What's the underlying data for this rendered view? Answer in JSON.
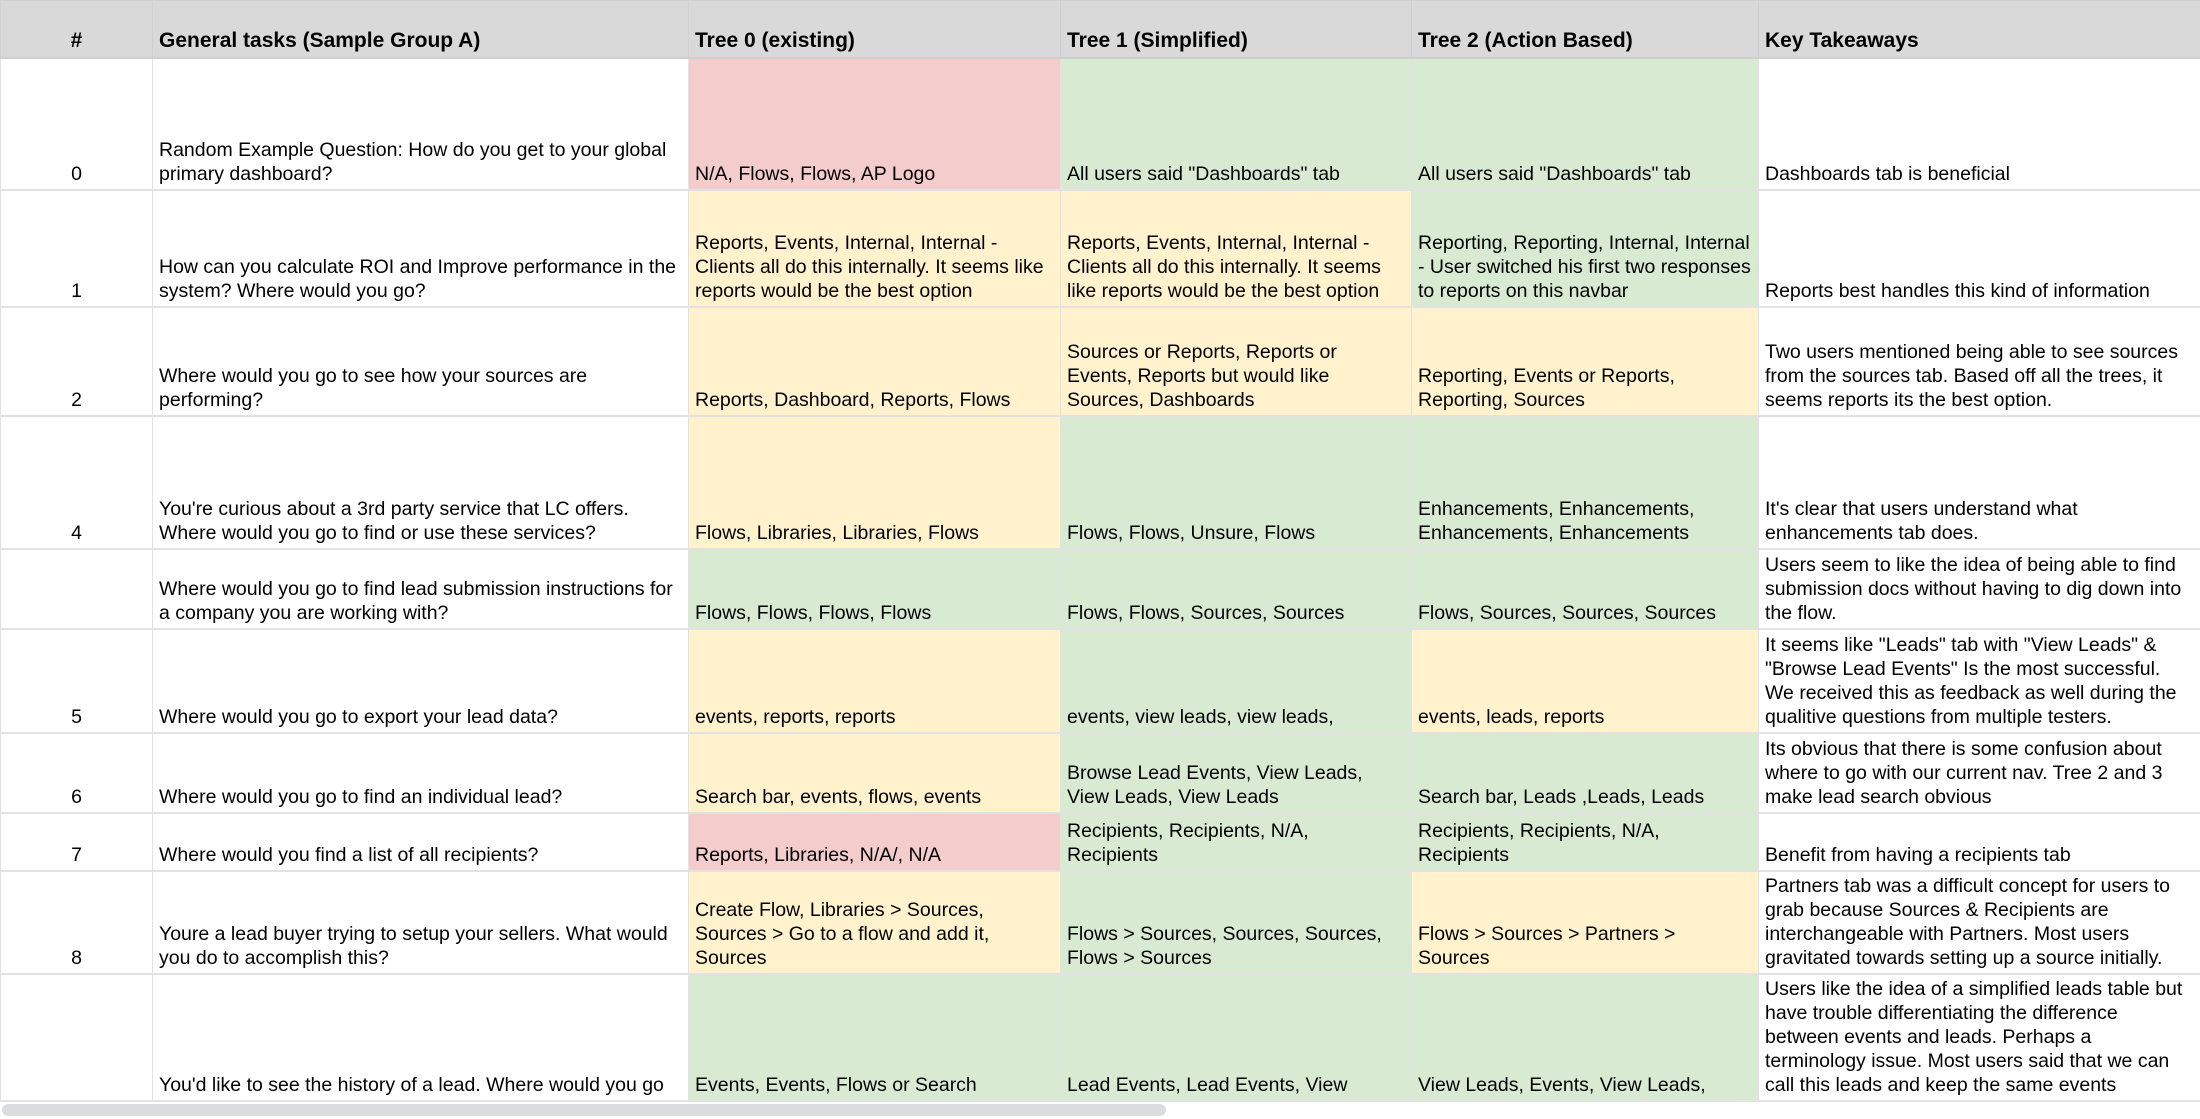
{
  "headers": [
    "#",
    "General tasks (Sample Group A)",
    "Tree 0 (existing)",
    "Tree 1 (Simplified)",
    "Tree 2 (Action Based)",
    "Key Takeaways"
  ],
  "colors": {
    "header": "#d9d9d9",
    "red": "#f4cccc",
    "yellow": "#fff2cc",
    "green": "#d9ead3"
  },
  "rows": [
    {
      "num": "0",
      "task": "Random Example Question: How do you get to your global primary dashboard?",
      "tree0": "N/A, Flows, Flows, AP Logo",
      "tree0_color": "red",
      "tree1": "All users said \"Dashboards\" tab",
      "tree1_color": "green",
      "tree2": "All users said \"Dashboards\" tab",
      "tree2_color": "green",
      "takeaway": "Dashboards tab is beneficial"
    },
    {
      "num": "1",
      "task": "How can you calculate ROI and Improve performance in the system? Where would you go?",
      "tree0": "Reports, Events, Internal, Internal - Clients all do this internally. It seems like reports would be the best option",
      "tree0_color": "yellow",
      "tree1": "Reports, Events, Internal, Internal - Clients all do this internally. It seems like reports would be the best option",
      "tree1_color": "yellow",
      "tree2": "Reporting, Reporting, Internal, Internal - User switched his first two responses to reports on this navbar",
      "tree2_color": "green",
      "takeaway": "Reports best handles this kind of information"
    },
    {
      "num": "2",
      "task": "Where would you go to see how your sources are performing?",
      "tree0": "Reports, Dashboard, Reports, Flows",
      "tree0_color": "yellow",
      "tree1": "Sources or Reports, Reports or Events, Reports but would like Sources, Dashboards",
      "tree1_color": "yellow",
      "tree2": "Reporting, Events or Reports, Reporting, Sources",
      "tree2_color": "yellow",
      "takeaway": "Two users mentioned being able to see sources from the sources tab. Based off all the trees, it seems reports its the best option."
    },
    {
      "num": "4",
      "task": "You're curious about a 3rd party service that LC offers. Where would you go to find or use these services?",
      "tree0": "Flows, Libraries, Libraries, Flows",
      "tree0_color": "yellow",
      "tree1": "Flows, Flows, Unsure, Flows",
      "tree1_color": "green",
      "tree2": "Enhancements, Enhancements, Enhancements, Enhancements",
      "tree2_color": "green",
      "takeaway": "It's clear that users understand what enhancements tab does."
    },
    {
      "num": "",
      "task": "Where would you go to find lead submission instructions for a company you are working with?",
      "tree0": "Flows, Flows, Flows, Flows",
      "tree0_color": "green",
      "tree1": "Flows, Flows, Sources, Sources",
      "tree1_color": "green",
      "tree2": "Flows, Sources, Sources, Sources",
      "tree2_color": "green",
      "takeaway": "Users seem to like the idea of being able to find submission docs without having to dig down into the flow."
    },
    {
      "num": "5",
      "task": "Where would you go to export your lead data?",
      "tree0": "events, reports, reports",
      "tree0_color": "yellow",
      "tree1": "events, view leads, view leads,",
      "tree1_color": "green",
      "tree2": "events, leads, reports",
      "tree2_color": "yellow",
      "takeaway": "It seems like \"Leads\" tab with \"View Leads\" & \"Browse Lead Events\" Is the most successful. We received this as feedback as well during the qualitive questions from multiple testers."
    },
    {
      "num": "6",
      "task": "Where would you go to find an individual lead?",
      "tree0": "Search bar, events, flows, events",
      "tree0_color": "yellow",
      "tree1": "Browse Lead Events, View Leads, View Leads, View Leads",
      "tree1_color": "green",
      "tree2": "Search bar, Leads ,Leads, Leads",
      "tree2_color": "green",
      "takeaway": "Its obvious that there is some confusion about where to go with our current nav. Tree 2 and 3 make lead search obvious"
    },
    {
      "num": "7",
      "task": "Where would you find a list of all recipients?",
      "tree0": "Reports, Libraries, N/A/, N/A",
      "tree0_color": "red",
      "tree1": "Recipients, Recipients, N/A, Recipients",
      "tree1_color": "green",
      "tree2": "Recipients, Recipients, N/A, Recipients",
      "tree2_color": "green",
      "takeaway": "Benefit from having a recipients tab"
    },
    {
      "num": "8",
      "task": "Youre a lead buyer trying to setup your sellers. What would you do to accomplish this?",
      "tree0": "Create Flow, Libraries > Sources, Sources > Go to a flow and add it, Sources",
      "tree0_color": "yellow",
      "tree1": "Flows > Sources, Sources, Sources, Flows > Sources",
      "tree1_color": "green",
      "tree2": "Flows > Sources > Partners > Sources",
      "tree2_color": "yellow",
      "takeaway": "Partners tab was a difficult concept for users to grab because Sources & Recipients are interchangeable with Partners. Most users gravitated towards setting up a source initially."
    },
    {
      "num": "",
      "task": "You'd like to see the history of a lead. Where would you go",
      "tree0": "Events, Events, Flows or Search",
      "tree0_color": "green",
      "tree1": "Lead Events, Lead Events, View",
      "tree1_color": "green",
      "tree2": "View Leads, Events, View Leads,",
      "tree2_color": "green",
      "takeaway": "Users like the idea of a simplified leads table but have trouble differentiating the difference between events and leads. Perhaps a terminology issue. Most users said that we can call this leads and keep the same events"
    }
  ]
}
